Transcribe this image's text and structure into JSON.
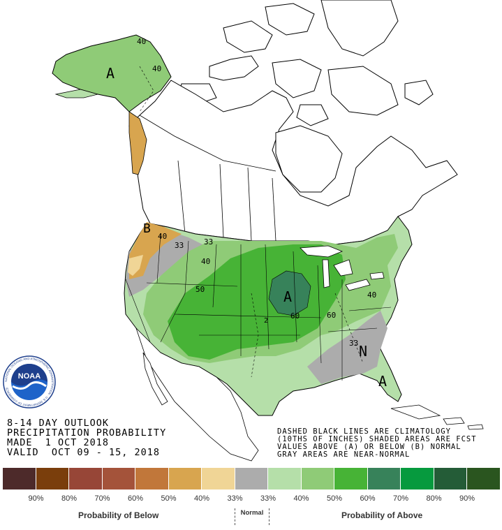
{
  "title_lines": [
    "8-14 DAY OUTLOOK",
    "PRECIPITATION PROBABILITY",
    "MADE  1 OCT 2018",
    "VALID  OCT 09 - 15, 2018"
  ],
  "notes_lines": [
    "DASHED BLACK LINES ARE CLIMATOLOGY",
    "(10THS OF INCHES) SHADED AREAS ARE FCST",
    "VALUES ABOVE (A) OR BELOW (B) NORMAL",
    "GRAY AREAS ARE NEAR-NORMAL"
  ],
  "logo": {
    "text": "NOAA",
    "ring_text": "NATIONAL OCEANIC AND ATMOSPHERIC ADMINISTRATION · U.S. DEPARTMENT OF COMMERCE"
  },
  "map_labels": {
    "alaska_A": "A",
    "alaska_40a": "40",
    "alaska_40b": "40",
    "nw_B": "B",
    "nw_40": "40",
    "nw_33a": "33",
    "nw_33b": "33",
    "c40": "40",
    "c50": "50",
    "c60": "60",
    "midwest_A": "A",
    "ne_60": "60",
    "e40": "40",
    "se_33": "33",
    "se_N": "N",
    "fl_A": "A",
    "clim_2": "2"
  },
  "legend": {
    "below_label": "Probability of Below",
    "normal_label": "Normal",
    "above_label": "Probability of Above",
    "swatches": [
      {
        "color": "#4d2a2a"
      },
      {
        "color": "#7a3e0c"
      },
      {
        "color": "#974637"
      },
      {
        "color": "#a4533a"
      },
      {
        "color": "#c1773a"
      },
      {
        "color": "#d8a54f"
      },
      {
        "color": "#f0d596"
      },
      {
        "color": "#acacac"
      },
      {
        "color": "#b5dfa9"
      },
      {
        "color": "#8fcb77"
      },
      {
        "color": "#47b336"
      },
      {
        "color": "#37825a"
      },
      {
        "color": "#069a3e"
      },
      {
        "color": "#245c37"
      },
      {
        "color": "#2a551f"
      }
    ],
    "tick_labels": [
      "90%",
      "80%",
      "70%",
      "60%",
      "50%",
      "40%",
      "33%",
      "33%",
      "40%",
      "50%",
      "60%",
      "70%",
      "80%",
      "90%"
    ]
  }
}
